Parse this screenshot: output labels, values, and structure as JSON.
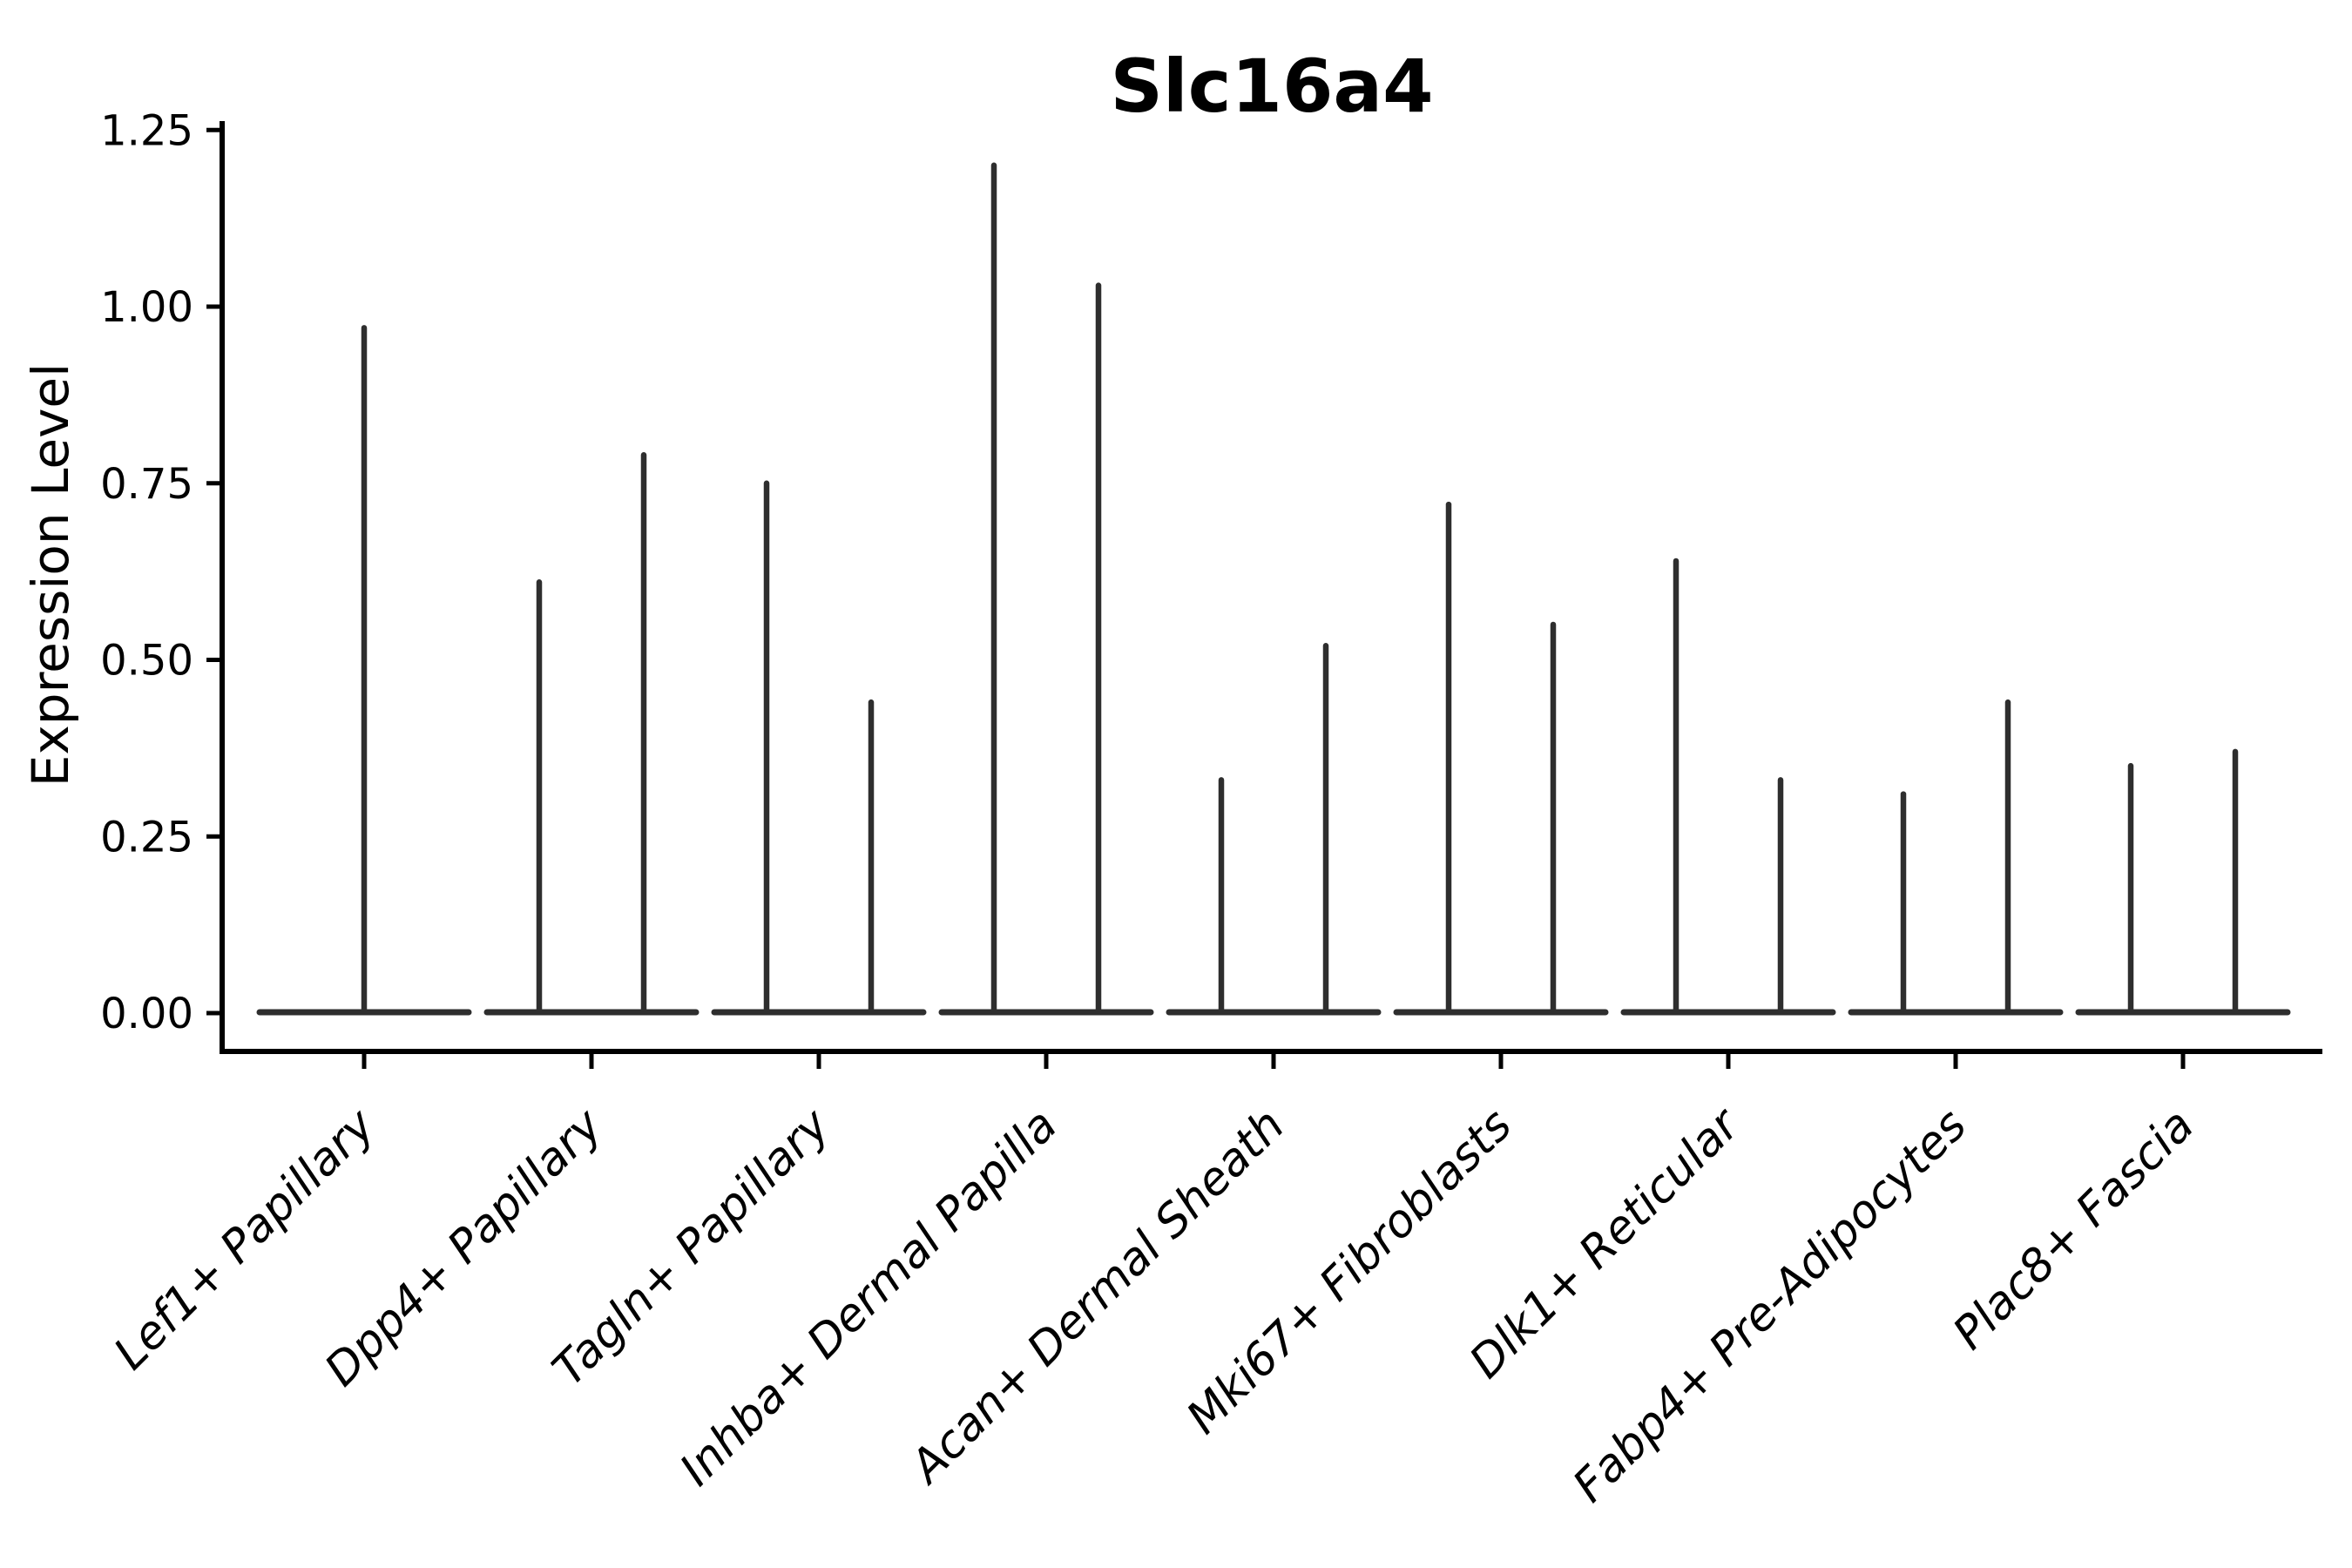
{
  "figure": {
    "background": "#ffffff"
  },
  "chart_data": {
    "type": "violin",
    "title": "Slc16a4",
    "xlabel": "",
    "ylabel": "Expression Level",
    "grid": false,
    "legend_position": "none",
    "ylim": [
      -0.05,
      1.26
    ],
    "yticks": [
      {
        "value": 0.0,
        "label": "0.00"
      },
      {
        "value": 0.25,
        "label": "0.25"
      },
      {
        "value": 0.5,
        "label": "0.50"
      },
      {
        "value": 0.75,
        "label": "0.75"
      },
      {
        "value": 1.0,
        "label": "1.00"
      },
      {
        "value": 1.25,
        "label": "1.25"
      }
    ],
    "categories": [
      {
        "label": "Lef1+ Papillary",
        "violins": [
          {
            "offset": 0,
            "halfwidth": 2,
            "max": 0.97
          }
        ]
      },
      {
        "label": "Dpp4+ Papillary",
        "violins": [
          {
            "offset": -1,
            "halfwidth": 1,
            "max": 0.61
          },
          {
            "offset": 1,
            "halfwidth": 1,
            "max": 0.79
          }
        ]
      },
      {
        "label": "Tagln+ Papillary",
        "violins": [
          {
            "offset": -1,
            "halfwidth": 1,
            "max": 0.75
          },
          {
            "offset": 1,
            "halfwidth": 1,
            "max": 0.44
          }
        ]
      },
      {
        "label": "Inhba+ Dermal Papilla",
        "violins": [
          {
            "offset": -1,
            "halfwidth": 1,
            "max": 1.2
          },
          {
            "offset": 1,
            "halfwidth": 1,
            "max": 1.03
          }
        ]
      },
      {
        "label": "Acan+ Dermal Sheath",
        "violins": [
          {
            "offset": -1,
            "halfwidth": 1,
            "max": 0.33
          },
          {
            "offset": 1,
            "halfwidth": 1,
            "max": 0.52
          }
        ]
      },
      {
        "label": "Mki67+ Fibroblasts",
        "violins": [
          {
            "offset": -1,
            "halfwidth": 1,
            "max": 0.72
          },
          {
            "offset": 1,
            "halfwidth": 1,
            "max": 0.55
          }
        ]
      },
      {
        "label": "Dlk1+ Reticular",
        "violins": [
          {
            "offset": -1,
            "halfwidth": 1,
            "max": 0.64
          },
          {
            "offset": 1,
            "halfwidth": 1,
            "max": 0.33
          }
        ]
      },
      {
        "label": "Fabp4+ Pre-Adipocytes",
        "violins": [
          {
            "offset": -1,
            "halfwidth": 1,
            "max": 0.31
          },
          {
            "offset": 1,
            "halfwidth": 1,
            "max": 0.44
          }
        ]
      },
      {
        "label": "Plac8+ Fascia",
        "violins": [
          {
            "offset": -1,
            "halfwidth": 1,
            "max": 0.35
          },
          {
            "offset": 1,
            "halfwidth": 1,
            "max": 0.37
          }
        ]
      }
    ],
    "style": {
      "violin_color": "#2e2e2e",
      "axis_color": "#000000",
      "text_color": "#000000",
      "background": "#ffffff"
    }
  }
}
